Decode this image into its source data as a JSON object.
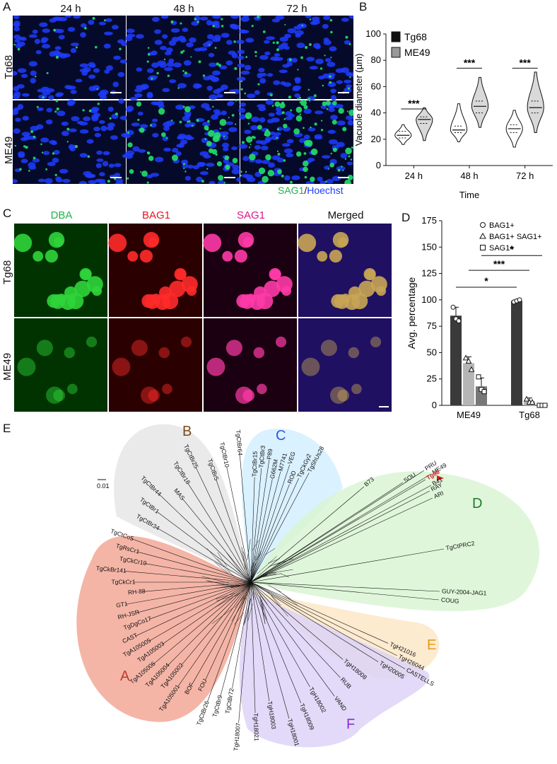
{
  "panels": {
    "A": "A",
    "B": "B",
    "C": "C",
    "D": "D",
    "E": "E"
  },
  "panel_a": {
    "columns": [
      "24 h",
      "48 h",
      "72 h"
    ],
    "rows": [
      "Tg68",
      "ME49"
    ],
    "stain_sag1": "SAG1",
    "stain_sep": "/",
    "stain_hoechst": "Hoechst",
    "colors": {
      "nuclei": "#1f3cff",
      "sag1": "#22e06a",
      "background": "#050a2a"
    }
  },
  "panel_c": {
    "columns": [
      "DBA",
      "BAG1",
      "SAG1",
      "Merged"
    ],
    "column_colors": [
      "#22b14c",
      "#e8141e",
      "#e0148c",
      "#111111"
    ],
    "rows": [
      "Tg68",
      "ME49"
    ]
  },
  "chart_data": [
    {
      "panel": "B",
      "type": "violin",
      "ylabel": "Vacuole diameter (µm)",
      "xlabel": "Time",
      "categories": [
        "24 h",
        "48 h",
        "72 h"
      ],
      "ylim": [
        0,
        100
      ],
      "yticks": [
        0,
        20,
        40,
        60,
        80,
        100
      ],
      "legend": [
        "Tg68",
        "ME49"
      ],
      "legend_position": "top-left",
      "series": [
        {
          "name": "Tg68",
          "color": "#111111",
          "median": [
            23,
            27,
            28
          ],
          "q1": [
            21,
            25,
            25
          ],
          "q3": [
            26,
            30,
            31
          ],
          "min": [
            16,
            18,
            14
          ],
          "max": [
            31,
            47,
            42
          ]
        },
        {
          "name": "ME49",
          "color": "#999999",
          "median": [
            35,
            45,
            44
          ],
          "q1": [
            32,
            40,
            40
          ],
          "q3": [
            37,
            49,
            49
          ],
          "min": [
            19,
            29,
            25
          ],
          "max": [
            44,
            67,
            71
          ]
        }
      ],
      "significance": [
        "***",
        "***",
        "***"
      ]
    },
    {
      "panel": "D",
      "type": "bar",
      "ylabel": "Avg. percentage",
      "categories": [
        "ME49",
        "Tg68"
      ],
      "ylim": [
        0,
        175
      ],
      "yticks": [
        0,
        25,
        50,
        75,
        100,
        125,
        150,
        175
      ],
      "legend": [
        "BAG1+",
        "BAG1+ SAG1+",
        "SAG1+"
      ],
      "legend_position": "top-right",
      "series": [
        {
          "name": "BAG1+",
          "color": "#3a3a3a",
          "marker": "circle",
          "values": [
            85,
            99
          ],
          "errors": [
            8,
            1
          ],
          "points": [
            [
              93,
              82,
              80
            ],
            [
              98,
              99,
              100
            ]
          ]
        },
        {
          "name": "BAG1+ SAG1+",
          "color": "#b5b5b5",
          "marker": "triangle",
          "values": [
            40,
            4
          ],
          "errors": [
            6,
            3
          ],
          "points": [
            [
              45,
              42,
              34
            ],
            [
              6,
              3,
              3
            ]
          ]
        },
        {
          "name": "SAG1+",
          "color": "#777777",
          "marker": "square",
          "values": [
            18,
            0
          ],
          "errors": [
            8,
            0
          ],
          "points": [
            [
              27,
              15,
              13
            ],
            [
              0,
              0,
              0
            ]
          ]
        }
      ],
      "significance": [
        {
          "label": "*",
          "between": [
            "ME49 BAG1+",
            "Tg68 BAG1+"
          ]
        },
        {
          "label": "***",
          "between": [
            "ME49 BAG1+ SAG1+",
            "Tg68 BAG1+ SAG1+"
          ]
        },
        {
          "label": "*",
          "between": [
            "ME49 SAG1+",
            "Tg68 SAG1+"
          ]
        }
      ]
    },
    {
      "panel": "E",
      "type": "phylogenetic-network",
      "scale_bar": "0.01",
      "clades": [
        {
          "name": "A",
          "color": "#f2a898",
          "label_color": "#c0392b",
          "taxa": [
            "TgCtBr72",
            "TgCtBr9",
            "TgCtBr26",
            "FOU",
            "BOF",
            "TgA105001",
            "TgA105002",
            "TgA105004",
            "TgA105006",
            "TgA105003",
            "TgA105005",
            "CAST",
            "TgDgCo17",
            "RH-JSR",
            "GT1",
            "RH-88",
            "TgCkCr1",
            "TgCkBr141",
            "TgCkCr10",
            "TgRsCr1",
            "TgCtCo5"
          ]
        },
        {
          "name": "B",
          "color": "#e6e6e6",
          "label_color": "#7a4a1e",
          "taxa": [
            "TgCtBr34",
            "TgCtBr1",
            "TgCtBr44",
            "MAS",
            "TgCtBr18",
            "TgCtBr25",
            "TgCtBr5",
            "TgCtBr10",
            "TgCtBr64"
          ]
        },
        {
          "name": "C",
          "color": "#d4efff",
          "label_color": "#2a5bd7",
          "taxa": [
            "TgCtBr15",
            "TgCtBr3",
            "P89",
            "G662M",
            "M7741",
            "VEG",
            "ROD",
            "TgCkGy2",
            "TgShUs28"
          ]
        },
        {
          "name": "D",
          "color": "#d9f5d4",
          "label_color": "#1e7b2e",
          "taxa": [
            "SOU",
            "B73",
            "PRU",
            "ME49",
            "Tg68",
            "B41",
            "RAY",
            "ARI",
            "TgCtPRC2",
            "GUY-2004-JAG1",
            "COUG"
          ]
        },
        {
          "name": "E",
          "color": "#fde7c8",
          "label_color": "#e39b12",
          "taxa": [
            "TgH21016",
            "TgH26044",
            "CASTELLS",
            "TgH20005"
          ]
        },
        {
          "name": "F",
          "color": "#ddd4f7",
          "label_color": "#8a2bd6",
          "taxa": [
            "TgH18008",
            "RUB",
            "VAND",
            "TgH18002",
            "TgH18009",
            "TgH18001",
            "TgH18003",
            "TgH18021",
            "TgH18007"
          ]
        }
      ],
      "highlight": "Tg68",
      "highlight_color": "#d01f1f"
    }
  ]
}
